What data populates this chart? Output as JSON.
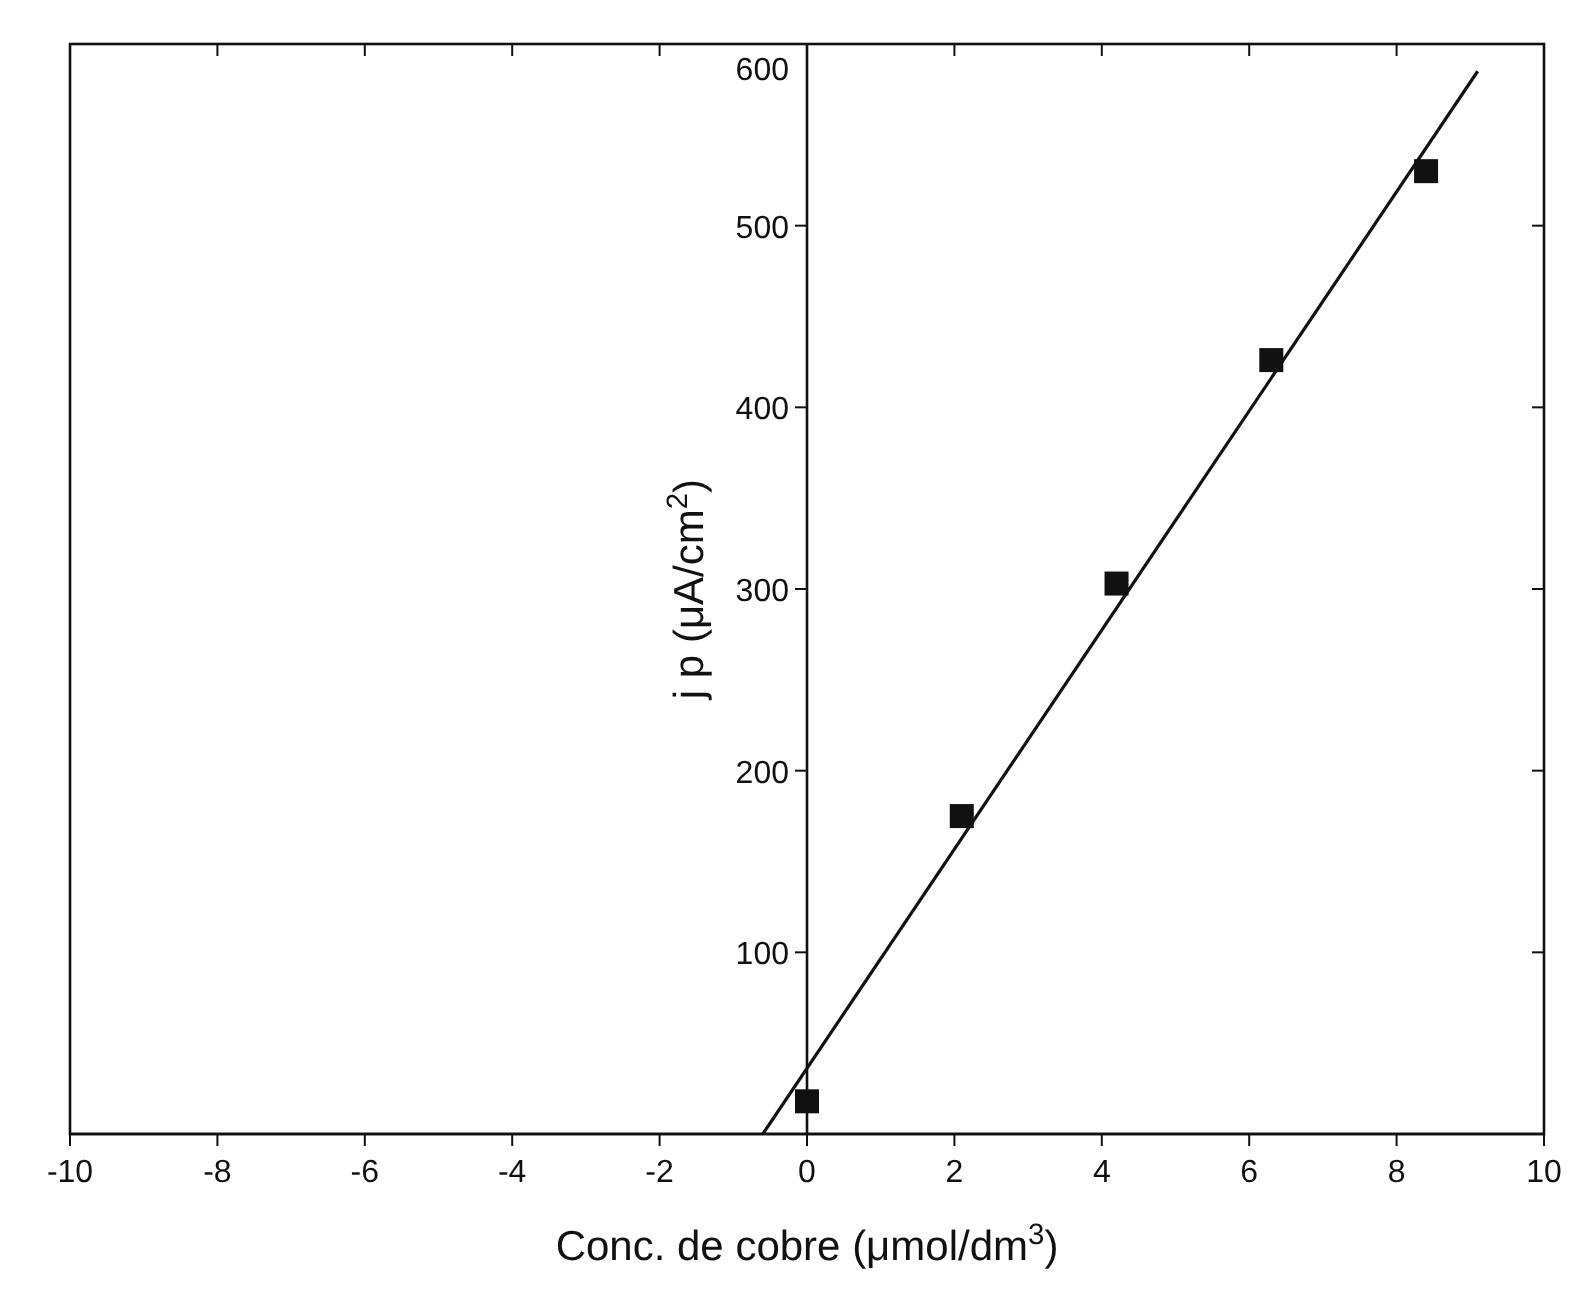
{
  "chart_data": {
    "type": "scatter",
    "xlabel": "Conc. de cobre (μmol/dm$^{3}$)",
    "ylabel": "j p (μA/cm$^{2}$)",
    "xlim": [
      -10,
      10
    ],
    "xticks": [
      -10,
      -8,
      -6,
      -4,
      -2,
      0,
      2,
      4,
      6,
      8,
      10
    ],
    "ylim": [
      0,
      600
    ],
    "yticks": [
      {
        "value": 0,
        "label": null
      },
      100,
      200,
      300,
      400,
      500,
      600
    ],
    "grid": false,
    "marker": "square",
    "series": [
      {
        "color": "#111111",
        "x": [
          0,
          2.1,
          4.2,
          6.3,
          8.4
        ],
        "values": [
          18,
          175,
          303,
          426,
          530
        ]
      },
      {
        "type": "line",
        "color": "#111111",
        "line_style": "solid",
        "marker": "none",
        "x": [
          -0.6,
          9.1
        ],
        "values": [
          0,
          585
        ]
      }
    ]
  }
}
